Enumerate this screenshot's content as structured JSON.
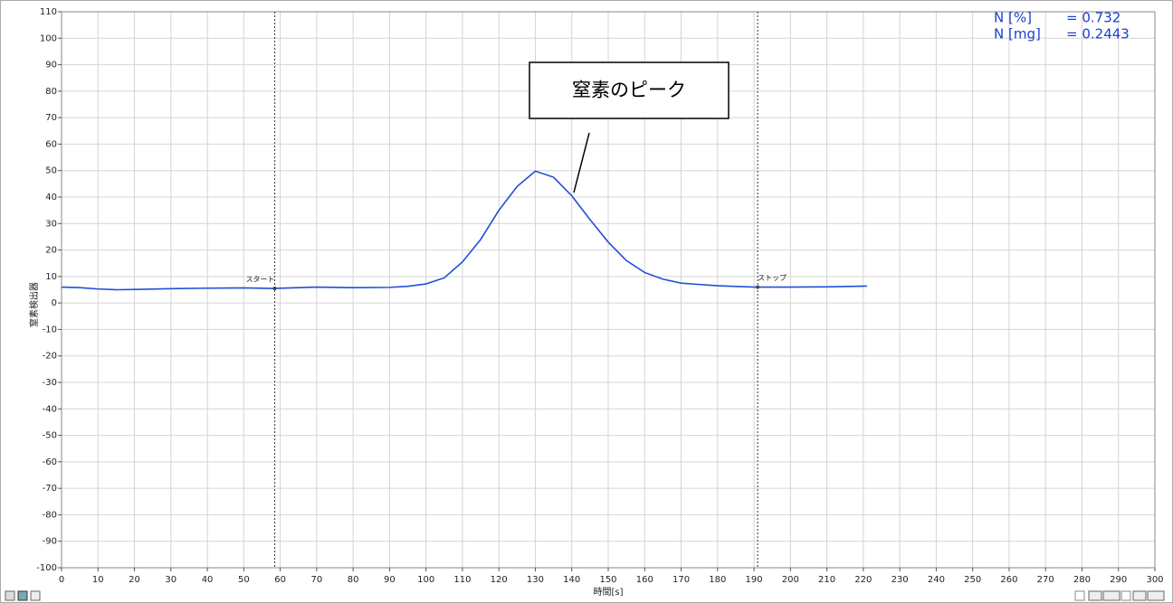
{
  "chart_data": {
    "type": "line",
    "x_label": "時間[s]",
    "y_label": "窒素検出器",
    "x": [
      0,
      5,
      10,
      15,
      20,
      30,
      40,
      50,
      58,
      70,
      80,
      90,
      95,
      100,
      105,
      110,
      115,
      120,
      125,
      130,
      135,
      140,
      145,
      150,
      155,
      160,
      165,
      170,
      180,
      190,
      200,
      210,
      221
    ],
    "series": [
      {
        "color": "#1f4fd8",
        "values": [
          6,
          5.8,
          5.3,
          5,
          5.1,
          5.4,
          5.6,
          5.7,
          5.5,
          6,
          5.8,
          5.9,
          6.3,
          7.2,
          9.5,
          15.5,
          24,
          35,
          44,
          49.8,
          47.5,
          40.5,
          31.5,
          23,
          16,
          11.5,
          9,
          7.5,
          6.5,
          6,
          6,
          6.1,
          6.4
        ]
      }
    ],
    "xlim": [
      0,
      300
    ],
    "ylim": [
      -100,
      110
    ],
    "xticks": [
      0,
      10,
      20,
      30,
      40,
      50,
      60,
      70,
      80,
      90,
      100,
      110,
      120,
      130,
      140,
      150,
      160,
      170,
      180,
      190,
      200,
      210,
      220,
      230,
      240,
      250,
      260,
      270,
      280,
      290,
      300
    ],
    "yticks": [
      -100,
      -90,
      -80,
      -70,
      -60,
      -50,
      -40,
      -30,
      -20,
      -10,
      0,
      10,
      20,
      30,
      40,
      50,
      60,
      70,
      80,
      90,
      100,
      110
    ],
    "grid": true,
    "markers": [
      {
        "label": "スタート",
        "x": 58.5,
        "y": 5.5
      },
      {
        "label": "ストップ",
        "x": 191,
        "y": 6
      }
    ],
    "readouts": [
      {
        "label": "N [%]",
        "value": "= 0.732"
      },
      {
        "label": "N [mg]",
        "value": "= 0.2443"
      }
    ],
    "annotation": "窒素のピーク"
  }
}
